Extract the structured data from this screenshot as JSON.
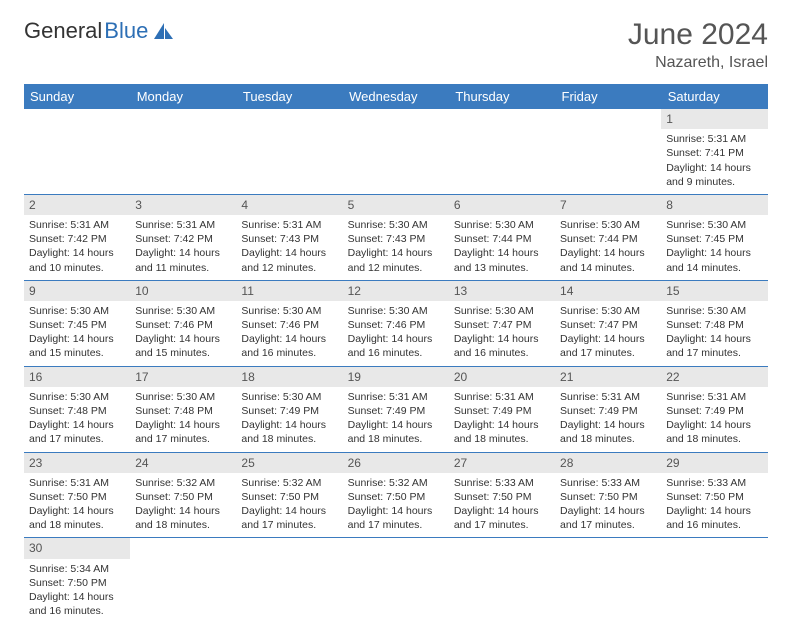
{
  "logo": {
    "text1": "General",
    "text2": "Blue",
    "icon_color": "#2d6fb5"
  },
  "title": "June 2024",
  "location": "Nazareth, Israel",
  "colors": {
    "header_bg": "#3b7bbf",
    "header_text": "#ffffff",
    "daynum_bg": "#e8e8e8",
    "border": "#3b7bbf",
    "text": "#333333"
  },
  "weekdays": [
    "Sunday",
    "Monday",
    "Tuesday",
    "Wednesday",
    "Thursday",
    "Friday",
    "Saturday"
  ],
  "weeks": [
    [
      {
        "blank": true
      },
      {
        "blank": true
      },
      {
        "blank": true
      },
      {
        "blank": true
      },
      {
        "blank": true
      },
      {
        "blank": true
      },
      {
        "day": "1",
        "sunrise": "Sunrise: 5:31 AM",
        "sunset": "Sunset: 7:41 PM",
        "daylight": "Daylight: 14 hours and 9 minutes."
      }
    ],
    [
      {
        "day": "2",
        "sunrise": "Sunrise: 5:31 AM",
        "sunset": "Sunset: 7:42 PM",
        "daylight": "Daylight: 14 hours and 10 minutes."
      },
      {
        "day": "3",
        "sunrise": "Sunrise: 5:31 AM",
        "sunset": "Sunset: 7:42 PM",
        "daylight": "Daylight: 14 hours and 11 minutes."
      },
      {
        "day": "4",
        "sunrise": "Sunrise: 5:31 AM",
        "sunset": "Sunset: 7:43 PM",
        "daylight": "Daylight: 14 hours and 12 minutes."
      },
      {
        "day": "5",
        "sunrise": "Sunrise: 5:30 AM",
        "sunset": "Sunset: 7:43 PM",
        "daylight": "Daylight: 14 hours and 12 minutes."
      },
      {
        "day": "6",
        "sunrise": "Sunrise: 5:30 AM",
        "sunset": "Sunset: 7:44 PM",
        "daylight": "Daylight: 14 hours and 13 minutes."
      },
      {
        "day": "7",
        "sunrise": "Sunrise: 5:30 AM",
        "sunset": "Sunset: 7:44 PM",
        "daylight": "Daylight: 14 hours and 14 minutes."
      },
      {
        "day": "8",
        "sunrise": "Sunrise: 5:30 AM",
        "sunset": "Sunset: 7:45 PM",
        "daylight": "Daylight: 14 hours and 14 minutes."
      }
    ],
    [
      {
        "day": "9",
        "sunrise": "Sunrise: 5:30 AM",
        "sunset": "Sunset: 7:45 PM",
        "daylight": "Daylight: 14 hours and 15 minutes."
      },
      {
        "day": "10",
        "sunrise": "Sunrise: 5:30 AM",
        "sunset": "Sunset: 7:46 PM",
        "daylight": "Daylight: 14 hours and 15 minutes."
      },
      {
        "day": "11",
        "sunrise": "Sunrise: 5:30 AM",
        "sunset": "Sunset: 7:46 PM",
        "daylight": "Daylight: 14 hours and 16 minutes."
      },
      {
        "day": "12",
        "sunrise": "Sunrise: 5:30 AM",
        "sunset": "Sunset: 7:46 PM",
        "daylight": "Daylight: 14 hours and 16 minutes."
      },
      {
        "day": "13",
        "sunrise": "Sunrise: 5:30 AM",
        "sunset": "Sunset: 7:47 PM",
        "daylight": "Daylight: 14 hours and 16 minutes."
      },
      {
        "day": "14",
        "sunrise": "Sunrise: 5:30 AM",
        "sunset": "Sunset: 7:47 PM",
        "daylight": "Daylight: 14 hours and 17 minutes."
      },
      {
        "day": "15",
        "sunrise": "Sunrise: 5:30 AM",
        "sunset": "Sunset: 7:48 PM",
        "daylight": "Daylight: 14 hours and 17 minutes."
      }
    ],
    [
      {
        "day": "16",
        "sunrise": "Sunrise: 5:30 AM",
        "sunset": "Sunset: 7:48 PM",
        "daylight": "Daylight: 14 hours and 17 minutes."
      },
      {
        "day": "17",
        "sunrise": "Sunrise: 5:30 AM",
        "sunset": "Sunset: 7:48 PM",
        "daylight": "Daylight: 14 hours and 17 minutes."
      },
      {
        "day": "18",
        "sunrise": "Sunrise: 5:30 AM",
        "sunset": "Sunset: 7:49 PM",
        "daylight": "Daylight: 14 hours and 18 minutes."
      },
      {
        "day": "19",
        "sunrise": "Sunrise: 5:31 AM",
        "sunset": "Sunset: 7:49 PM",
        "daylight": "Daylight: 14 hours and 18 minutes."
      },
      {
        "day": "20",
        "sunrise": "Sunrise: 5:31 AM",
        "sunset": "Sunset: 7:49 PM",
        "daylight": "Daylight: 14 hours and 18 minutes."
      },
      {
        "day": "21",
        "sunrise": "Sunrise: 5:31 AM",
        "sunset": "Sunset: 7:49 PM",
        "daylight": "Daylight: 14 hours and 18 minutes."
      },
      {
        "day": "22",
        "sunrise": "Sunrise: 5:31 AM",
        "sunset": "Sunset: 7:49 PM",
        "daylight": "Daylight: 14 hours and 18 minutes."
      }
    ],
    [
      {
        "day": "23",
        "sunrise": "Sunrise: 5:31 AM",
        "sunset": "Sunset: 7:50 PM",
        "daylight": "Daylight: 14 hours and 18 minutes."
      },
      {
        "day": "24",
        "sunrise": "Sunrise: 5:32 AM",
        "sunset": "Sunset: 7:50 PM",
        "daylight": "Daylight: 14 hours and 18 minutes."
      },
      {
        "day": "25",
        "sunrise": "Sunrise: 5:32 AM",
        "sunset": "Sunset: 7:50 PM",
        "daylight": "Daylight: 14 hours and 17 minutes."
      },
      {
        "day": "26",
        "sunrise": "Sunrise: 5:32 AM",
        "sunset": "Sunset: 7:50 PM",
        "daylight": "Daylight: 14 hours and 17 minutes."
      },
      {
        "day": "27",
        "sunrise": "Sunrise: 5:33 AM",
        "sunset": "Sunset: 7:50 PM",
        "daylight": "Daylight: 14 hours and 17 minutes."
      },
      {
        "day": "28",
        "sunrise": "Sunrise: 5:33 AM",
        "sunset": "Sunset: 7:50 PM",
        "daylight": "Daylight: 14 hours and 17 minutes."
      },
      {
        "day": "29",
        "sunrise": "Sunrise: 5:33 AM",
        "sunset": "Sunset: 7:50 PM",
        "daylight": "Daylight: 14 hours and 16 minutes."
      }
    ],
    [
      {
        "day": "30",
        "sunrise": "Sunrise: 5:34 AM",
        "sunset": "Sunset: 7:50 PM",
        "daylight": "Daylight: 14 hours and 16 minutes."
      },
      {
        "blank": true
      },
      {
        "blank": true
      },
      {
        "blank": true
      },
      {
        "blank": true
      },
      {
        "blank": true
      },
      {
        "blank": true
      }
    ]
  ]
}
